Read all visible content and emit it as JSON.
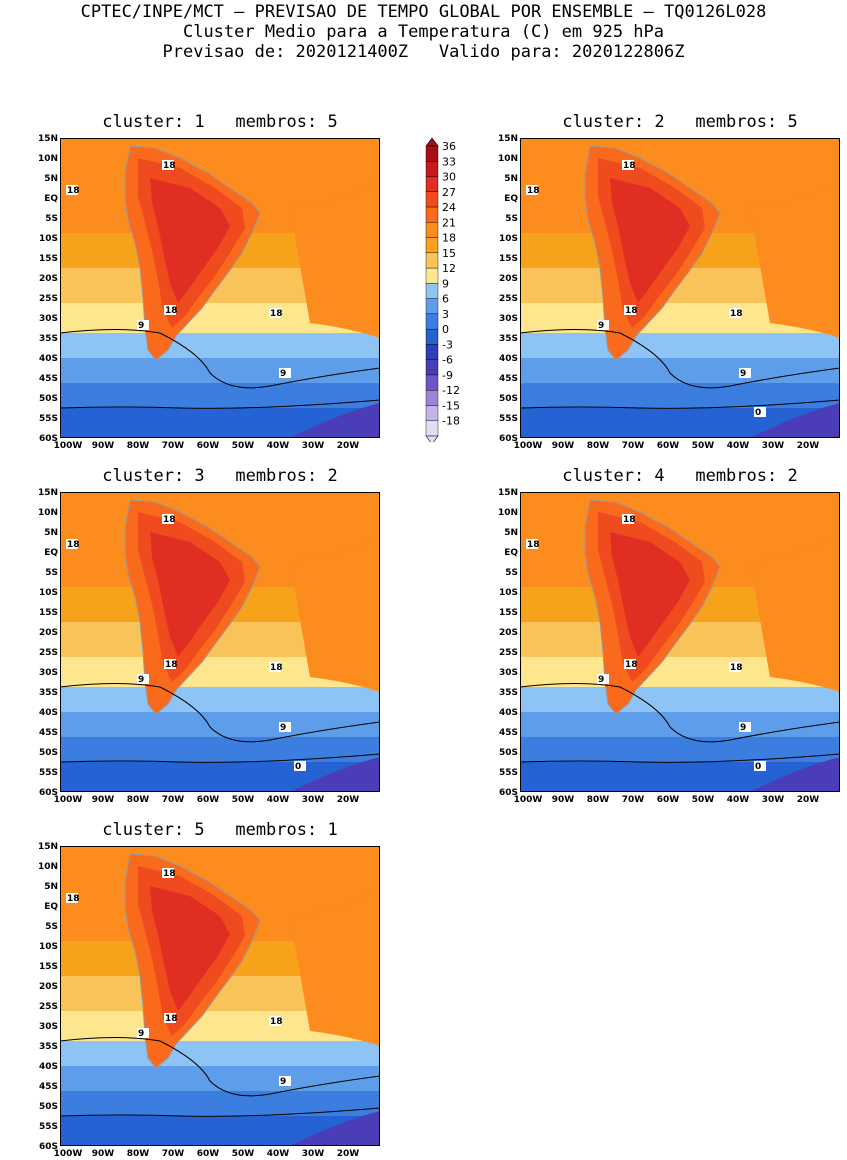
{
  "header": {
    "line1": "CPTEC/INPE/MCT – PREVISAO DE TEMPO GLOBAL POR ENSEMBLE – TQ0126L028",
    "line2": "Cluster Medio para a Temperatura (C) em 925 hPa",
    "line3": "Previsao de: 2020121400Z   Valido para: 2020122806Z"
  },
  "lat_ticks": [
    "15N",
    "10N",
    "5N",
    "EQ",
    "5S",
    "10S",
    "15S",
    "20S",
    "25S",
    "30S",
    "35S",
    "40S",
    "45S",
    "50S",
    "55S",
    "60S"
  ],
  "lon_ticks": [
    "100W",
    "90W",
    "80W",
    "70W",
    "60W",
    "50W",
    "40W",
    "30W",
    "20W"
  ],
  "colorbar": {
    "levels": [
      "36",
      "33",
      "30",
      "27",
      "24",
      "21",
      "18",
      "15",
      "12",
      "9",
      "6",
      "3",
      "0",
      "-3",
      "-6",
      "-9",
      "-12",
      "-15",
      "-18"
    ],
    "colors": [
      "#a50f15",
      "#c8171d",
      "#e02f22",
      "#ef4b1f",
      "#f96a1c",
      "#fb8c1d",
      "#f7a21b",
      "#f9c35a",
      "#fde68e",
      "#8ec3f5",
      "#5d9de9",
      "#3c7ee0",
      "#2563d4",
      "#2a3eb5",
      "#4b3cb8",
      "#6f55c6",
      "#9b85d8",
      "#c3b4e8",
      "#e4dcf4"
    ]
  },
  "panels": [
    {
      "title": "cluster: 1   membros: 5",
      "labels": [
        "18",
        "18",
        "18",
        "18",
        "9",
        "9"
      ]
    },
    {
      "title": "cluster: 2   membros: 5",
      "labels": [
        "18",
        "18",
        "18",
        "18",
        "9",
        "9",
        "0"
      ]
    },
    {
      "title": "cluster: 3   membros: 2",
      "labels": [
        "18",
        "18",
        "18",
        "18",
        "9",
        "9",
        "0"
      ]
    },
    {
      "title": "cluster: 4   membros: 2",
      "labels": [
        "18",
        "18",
        "18",
        "18",
        "9",
        "9",
        "0"
      ]
    },
    {
      "title": "cluster: 5   membros: 1",
      "labels": [
        "18",
        "18",
        "18",
        "18",
        "9",
        "9"
      ]
    }
  ]
}
